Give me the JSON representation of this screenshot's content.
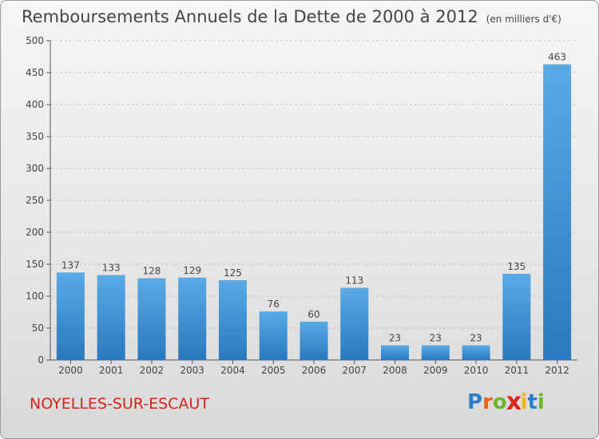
{
  "chart_data": {
    "type": "bar",
    "title": "Remboursements Annuels de la Dette de 2000 à 2012",
    "unit_note": "(en milliers d'€)",
    "categories": [
      "2000",
      "2001",
      "2002",
      "2003",
      "2004",
      "2005",
      "2006",
      "2007",
      "2008",
      "2009",
      "2010",
      "2011",
      "2012"
    ],
    "values": [
      137,
      133,
      128,
      129,
      125,
      76,
      60,
      113,
      23,
      23,
      23,
      135,
      463
    ],
    "ylim": [
      0,
      500
    ],
    "yticks": [
      0,
      50,
      100,
      150,
      200,
      250,
      300,
      350,
      400,
      450,
      500
    ],
    "grid": "horizontal dashed",
    "bar_color": "#3a8fd6"
  },
  "footer": {
    "town": "NOYELLES-SUR-ESCAUT",
    "logo_letters": [
      {
        "ch": "P",
        "color": "#2f7fc8"
      },
      {
        "ch": "r",
        "color": "#e8631a"
      },
      {
        "ch": "o",
        "color": "#6cb52d"
      },
      {
        "ch": "x",
        "color": "#e2231a"
      },
      {
        "ch": "i",
        "color": "#f2b500"
      },
      {
        "ch": "t",
        "color": "#2f7fc8"
      },
      {
        "ch": "i",
        "color": "#6cb52d"
      }
    ]
  }
}
